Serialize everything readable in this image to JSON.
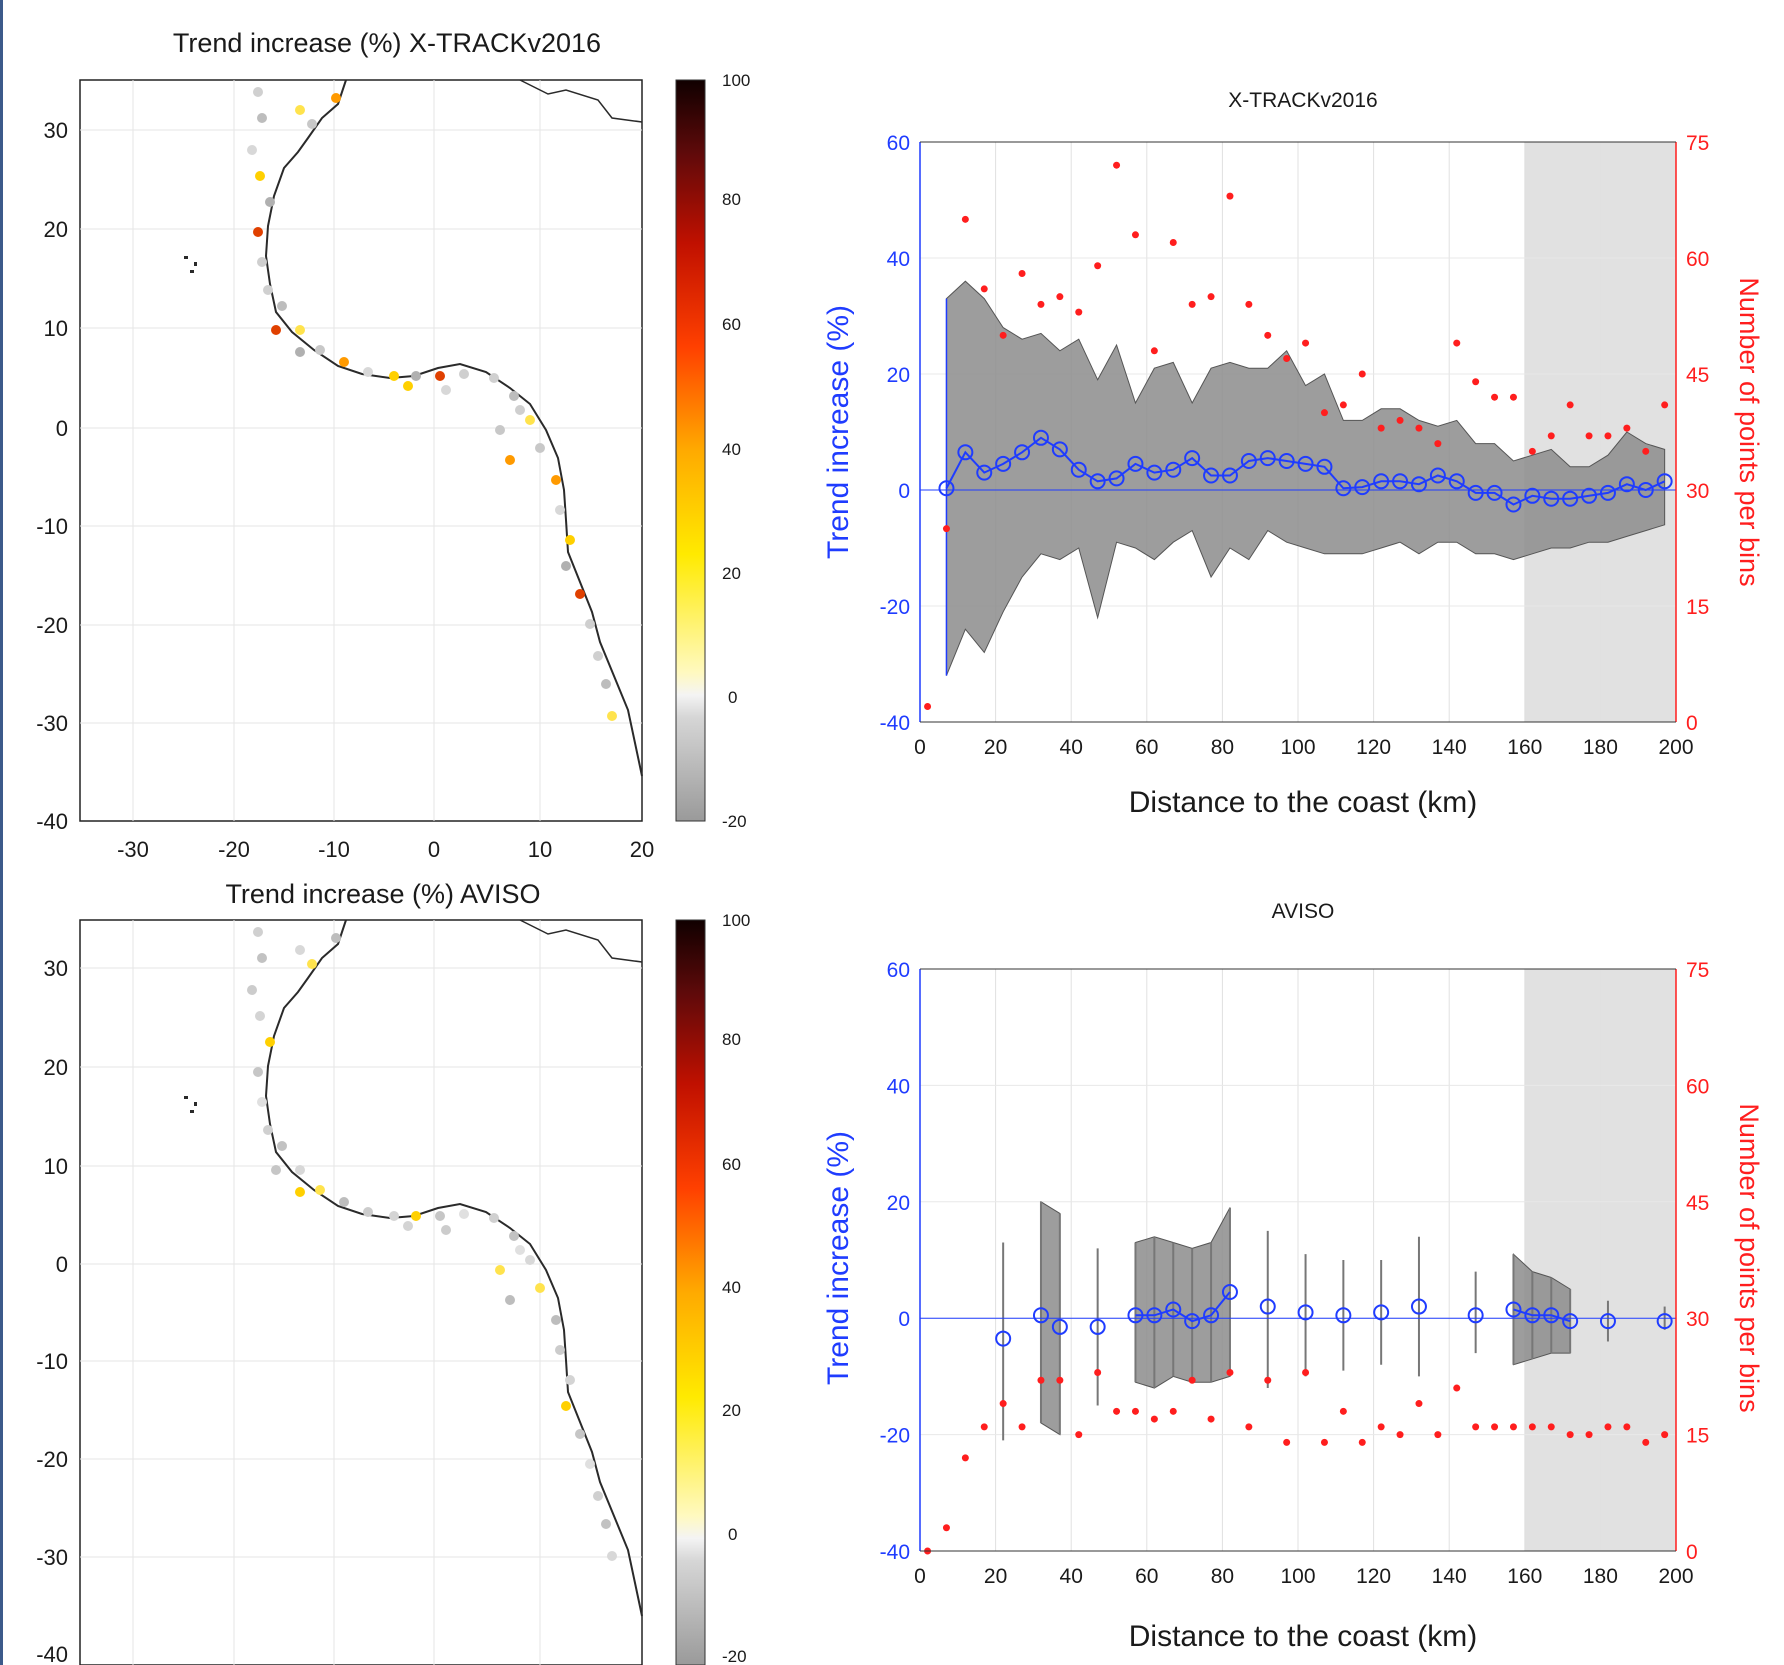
{
  "panels": {
    "map1": {
      "title": "Trend increase (%)  X-TRACKv2016",
      "xticks": [
        "-30",
        "-20",
        "-10",
        "0",
        "10",
        "20"
      ],
      "yticks": [
        "30",
        "20",
        "10",
        "0",
        "-10",
        "-20",
        "-30",
        "-40"
      ],
      "cb_ticks": [
        "100",
        "80",
        "60",
        "40",
        "20",
        "0",
        "-20"
      ]
    },
    "map2": {
      "title": "Trend increase (%) AVISO",
      "yticks": [
        "30",
        "20",
        "10",
        "0",
        "-10",
        "-20",
        "-30",
        "-40"
      ],
      "cb_ticks": [
        "100",
        "80",
        "60",
        "40",
        "20",
        "0",
        "-20"
      ]
    }
  },
  "colors": {
    "trend_axis": "#1f3cff",
    "count_axis": "#ff1e1e",
    "band": "#8c8c8c",
    "shade": "#e1e1e1",
    "coast": "#222222"
  },
  "chart_data": [
    {
      "type": "line",
      "title": "X-TRACKv2016",
      "xlabel": "Distance to the coast (km)",
      "ylabel": "Trend increase (%)",
      "y2label": "Number of points per bins",
      "xlim": [
        0,
        200
      ],
      "ylim": [
        -40,
        60
      ],
      "y2lim": [
        0,
        75
      ],
      "xticks": [
        "0",
        "20",
        "40",
        "60",
        "80",
        "100",
        "120",
        "140",
        "160",
        "180",
        "200"
      ],
      "yticks": [
        "60",
        "40",
        "20",
        "0",
        "-20",
        "-40"
      ],
      "y2ticks": [
        "75",
        "60",
        "45",
        "30",
        "15",
        "0"
      ],
      "shaded_xrange": [
        160,
        200
      ],
      "grid": true,
      "series": [
        {
          "x": [
            7,
            12,
            17,
            22,
            27,
            32,
            37,
            42,
            47,
            52,
            57,
            62,
            67,
            72,
            77,
            82,
            87,
            92,
            97,
            102,
            107,
            112,
            117,
            122,
            127,
            132,
            137,
            142,
            147,
            152,
            157,
            162,
            167,
            172,
            177,
            182,
            187,
            192,
            197
          ],
          "values": [
            0.3,
            6.5,
            3,
            4.5,
            6.5,
            9,
            7,
            3.5,
            1.5,
            2,
            4.5,
            3,
            3.5,
            5.5,
            2.5,
            2.5,
            5,
            5.5,
            5,
            4.5,
            4,
            0.3,
            0.5,
            1.5,
            1.5,
            1,
            2.5,
            1.5,
            -0.5,
            -0.5,
            -2.5,
            -1,
            -1.5,
            -1.5,
            -1,
            -0.5,
            1,
            0,
            1.5
          ]
        },
        {
          "x": [
            7,
            12,
            17,
            22,
            27,
            32,
            37,
            42,
            47,
            52,
            57,
            62,
            67,
            72,
            77,
            82,
            87,
            92,
            97,
            102,
            107,
            112,
            117,
            122,
            127,
            132,
            137,
            142,
            147,
            152,
            157,
            162,
            167,
            172,
            177,
            182,
            187,
            192,
            197
          ],
          "lower": [
            -32,
            -24,
            -28,
            -21,
            -15,
            -11,
            -12,
            -10,
            -22,
            -9,
            -10,
            -12,
            -9,
            -7,
            -15,
            -10,
            -12,
            -7,
            -9,
            -10,
            -11,
            -11,
            -11,
            -10,
            -9,
            -11,
            -9,
            -9,
            -11,
            -11,
            -12,
            -11,
            -10,
            -10,
            -9,
            -9,
            -8,
            -7,
            -6
          ],
          "upper": [
            33,
            36,
            33,
            28,
            26,
            27,
            24,
            26,
            19,
            25,
            15,
            21,
            22,
            15,
            21,
            22,
            21,
            21,
            24,
            18,
            20,
            12,
            12,
            14,
            14,
            12,
            11,
            12,
            8,
            8,
            5,
            6,
            7,
            4,
            4,
            6,
            10,
            8,
            7
          ]
        },
        {
          "x": [
            2,
            7,
            12,
            17,
            22,
            27,
            32,
            37,
            42,
            47,
            52,
            57,
            62,
            67,
            72,
            77,
            82,
            87,
            92,
            97,
            102,
            107,
            112,
            117,
            122,
            127,
            132,
            137,
            142,
            147,
            152,
            157,
            162,
            167,
            172,
            177,
            182,
            187,
            192,
            197
          ],
          "values": [
            2,
            25,
            65,
            56,
            50,
            58,
            54,
            55,
            53,
            59,
            72,
            63,
            48,
            62,
            54,
            55,
            68,
            54,
            50,
            47,
            49,
            40,
            41,
            45,
            38,
            39,
            38,
            36,
            49,
            44,
            42,
            42,
            35,
            37,
            41,
            37,
            37,
            38,
            35,
            41
          ]
        }
      ]
    },
    {
      "type": "line",
      "title": "AVISO",
      "xlabel": "Distance to the coast (km)",
      "ylabel": "Trend increase (%)",
      "y2label": "Number of points per bins",
      "xlim": [
        0,
        200
      ],
      "ylim": [
        -40,
        60
      ],
      "y2lim": [
        0,
        75
      ],
      "xticks": [
        "0",
        "20",
        "40",
        "60",
        "80",
        "100",
        "120",
        "140",
        "160",
        "180",
        "200"
      ],
      "yticks": [
        "60",
        "40",
        "20",
        "0",
        "-20",
        "-40"
      ],
      "y2ticks": [
        "75",
        "60",
        "45",
        "30",
        "15",
        "0"
      ],
      "shaded_xrange": [
        160,
        200
      ],
      "grid": true,
      "series": [
        {
          "x": [
            22,
            32,
            37,
            47,
            57,
            62,
            67,
            72,
            77,
            82,
            92,
            102,
            112,
            122,
            132,
            147,
            157,
            162,
            167,
            172,
            182,
            197
          ],
          "values": [
            -3.5,
            0.5,
            -1.5,
            -1.5,
            0.5,
            0.5,
            1.5,
            -0.5,
            0.5,
            4.5,
            2,
            1,
            0.5,
            1,
            2,
            0.5,
            1.5,
            0.5,
            0.5,
            -0.5,
            -0.5,
            -0.5
          ]
        },
        {
          "x": [
            22,
            32,
            37,
            47,
            57,
            62,
            67,
            72,
            77,
            82,
            92,
            102,
            112,
            122,
            132,
            147,
            157,
            162,
            167,
            172,
            182,
            197
          ],
          "lower": [
            -21,
            -18,
            -20,
            -15,
            -11,
            -12,
            -10,
            -11,
            -11,
            -10,
            -12,
            -10,
            -9,
            -8,
            -10,
            -6,
            -8,
            -7,
            -6,
            -6,
            -4,
            -2
          ],
          "upper": [
            13,
            20,
            18,
            12,
            13,
            14,
            13,
            12,
            13,
            19,
            15,
            11,
            10,
            10,
            14,
            8,
            11,
            8,
            7,
            5,
            3,
            2
          ]
        },
        {
          "x": [
            2,
            7,
            12,
            17,
            22,
            27,
            32,
            37,
            42,
            47,
            52,
            57,
            62,
            67,
            72,
            77,
            82,
            87,
            92,
            97,
            102,
            107,
            112,
            117,
            122,
            127,
            132,
            137,
            142,
            147,
            152,
            157,
            162,
            167,
            172,
            177,
            182,
            187,
            192,
            197
          ],
          "values": [
            0,
            3,
            12,
            16,
            19,
            16,
            22,
            22,
            15,
            23,
            18,
            18,
            17,
            18,
            22,
            17,
            23,
            16,
            22,
            14,
            23,
            14,
            18,
            14,
            16,
            15,
            19,
            15,
            21,
            16,
            16,
            16,
            16,
            16,
            15,
            15,
            16,
            16,
            14,
            15
          ]
        }
      ]
    }
  ]
}
